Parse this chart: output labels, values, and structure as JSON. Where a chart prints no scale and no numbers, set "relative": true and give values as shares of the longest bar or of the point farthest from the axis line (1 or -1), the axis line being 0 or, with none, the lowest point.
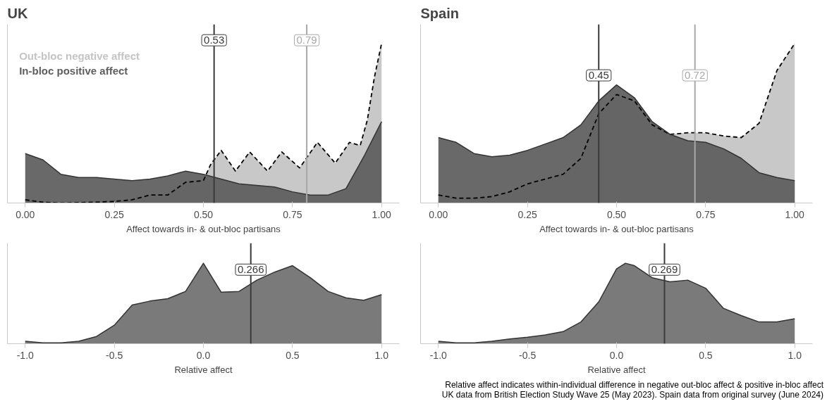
{
  "chart_data": [
    {
      "type": "area",
      "title": "UK",
      "xlabel": "Affect towards in- & out-bloc partisans",
      "relative": true,
      "legend": "top left",
      "grid": false,
      "tick_labels": "x",
      "xlim": [
        -0.05,
        1.05
      ],
      "xticks": [
        {
          "value": 0,
          "label": "0.00"
        },
        {
          "value": 0.25,
          "label": "0.25"
        },
        {
          "value": 0.5,
          "label": "0.50"
        },
        {
          "value": 0.75,
          "label": "0.75"
        },
        {
          "value": 1,
          "label": "1.00"
        }
      ],
      "series": [
        {
          "name": "Out-bloc negative affect",
          "color": "#c4c4c4",
          "line_style": "dashed",
          "x": [
            0,
            0.05,
            0.1,
            0.2,
            0.25,
            0.3,
            0.35,
            0.4,
            0.45,
            0.5,
            0.52,
            0.55,
            0.59,
            0.63,
            0.68,
            0.72,
            0.77,
            0.82,
            0.87,
            0.91,
            0.94,
            0.96,
            0.98,
            1.0
          ],
          "values": [
            0.02,
            0.005,
            0,
            0.005,
            0.01,
            0.02,
            0.05,
            0.05,
            0.13,
            0.14,
            0.24,
            0.33,
            0.2,
            0.32,
            0.2,
            0.32,
            0.22,
            0.38,
            0.25,
            0.38,
            0.36,
            0.52,
            0.79,
            1.0
          ]
        },
        {
          "name": "In-bloc positive affect",
          "color": "#5e5e5e",
          "line_style": "solid",
          "x": [
            0,
            0.05,
            0.1,
            0.15,
            0.2,
            0.25,
            0.3,
            0.35,
            0.4,
            0.45,
            0.5,
            0.55,
            0.6,
            0.65,
            0.7,
            0.75,
            0.8,
            0.85,
            0.9,
            0.95,
            1.0
          ],
          "values": [
            0.31,
            0.27,
            0.18,
            0.16,
            0.16,
            0.15,
            0.14,
            0.15,
            0.17,
            0.2,
            0.18,
            0.15,
            0.12,
            0.11,
            0.1,
            0.07,
            0.05,
            0.05,
            0.09,
            0.29,
            0.51
          ]
        }
      ],
      "ref_lines": [
        {
          "axis": "x",
          "value": 0.53,
          "label": "0.53",
          "color": "#3a3a3a"
        },
        {
          "axis": "x",
          "value": 0.79,
          "label": "0.79",
          "color": "#a8a8a8"
        }
      ]
    },
    {
      "type": "area",
      "title": "Spain",
      "xlabel": "Affect towards in- & out-bloc partisans",
      "relative": true,
      "grid": false,
      "tick_labels": "x",
      "xlim": [
        -0.05,
        1.05
      ],
      "xticks": [
        {
          "value": 0,
          "label": "0.00"
        },
        {
          "value": 0.25,
          "label": "0.25"
        },
        {
          "value": 0.5,
          "label": "0.50"
        },
        {
          "value": 0.75,
          "label": "0.75"
        },
        {
          "value": 1,
          "label": "1.00"
        }
      ],
      "series": [
        {
          "color": "#c4c4c4",
          "line_style": "dashed",
          "x": [
            0,
            0.05,
            0.1,
            0.15,
            0.2,
            0.25,
            0.3,
            0.35,
            0.4,
            0.45,
            0.5,
            0.55,
            0.6,
            0.65,
            0.7,
            0.75,
            0.8,
            0.85,
            0.9,
            0.95,
            1.0
          ],
          "values": [
            0.05,
            0.03,
            0.03,
            0.04,
            0.07,
            0.12,
            0.15,
            0.18,
            0.28,
            0.56,
            0.68,
            0.64,
            0.49,
            0.43,
            0.44,
            0.44,
            0.42,
            0.41,
            0.5,
            0.83,
            1.0
          ]
        },
        {
          "color": "#5e5e5e",
          "line_style": "solid",
          "x": [
            0,
            0.05,
            0.1,
            0.15,
            0.2,
            0.25,
            0.3,
            0.35,
            0.4,
            0.45,
            0.5,
            0.55,
            0.6,
            0.65,
            0.7,
            0.75,
            0.8,
            0.85,
            0.9,
            0.95,
            1.0
          ],
          "values": [
            0.41,
            0.38,
            0.31,
            0.29,
            0.3,
            0.33,
            0.37,
            0.41,
            0.49,
            0.64,
            0.74,
            0.66,
            0.51,
            0.43,
            0.39,
            0.38,
            0.34,
            0.28,
            0.19,
            0.16,
            0.14
          ]
        }
      ],
      "ref_lines": [
        {
          "axis": "x",
          "value": 0.45,
          "label": "0.45",
          "color": "#3a3a3a"
        },
        {
          "axis": "x",
          "value": 0.72,
          "label": "0.72",
          "color": "#a8a8a8"
        }
      ]
    },
    {
      "type": "area",
      "xlabel": "Relative affect",
      "relative": true,
      "grid": false,
      "tick_labels": "x",
      "xlim": [
        -1.1,
        1.1
      ],
      "xticks": [
        {
          "value": -1,
          "label": "-1.0"
        },
        {
          "value": -0.5,
          "label": "-0.5"
        },
        {
          "value": 0,
          "label": "0.0"
        },
        {
          "value": 0.5,
          "label": "0.5"
        },
        {
          "value": 1,
          "label": "1.0"
        }
      ],
      "series": [
        {
          "color": "#707070",
          "line_style": "solid",
          "x": [
            -1,
            -0.9,
            -0.8,
            -0.7,
            -0.6,
            -0.5,
            -0.4,
            -0.3,
            -0.2,
            -0.1,
            0,
            0.1,
            0.2,
            0.3,
            0.4,
            0.5,
            0.6,
            0.7,
            0.8,
            0.9,
            1.0
          ],
          "values": [
            0.03,
            0.01,
            0.01,
            0.03,
            0.09,
            0.23,
            0.48,
            0.53,
            0.56,
            0.65,
            1.0,
            0.64,
            0.65,
            0.79,
            0.89,
            0.97,
            0.82,
            0.65,
            0.57,
            0.54,
            0.61
          ]
        }
      ],
      "ref_lines": [
        {
          "axis": "x",
          "value": 0.266,
          "label": "0.266",
          "color": "#3a3a3a"
        }
      ]
    },
    {
      "type": "area",
      "xlabel": "Relative affect",
      "relative": true,
      "grid": false,
      "tick_labels": "x",
      "xlim": [
        -1.1,
        1.1
      ],
      "xticks": [
        {
          "value": -1,
          "label": "-1.0"
        },
        {
          "value": -0.5,
          "label": "-0.5"
        },
        {
          "value": 0,
          "label": "0.0"
        },
        {
          "value": 0.5,
          "label": "0.5"
        },
        {
          "value": 1,
          "label": "1.0"
        }
      ],
      "series": [
        {
          "color": "#707070",
          "line_style": "solid",
          "x": [
            -1,
            -0.9,
            -0.8,
            -0.7,
            -0.6,
            -0.5,
            -0.4,
            -0.3,
            -0.2,
            -0.1,
            0,
            0.05,
            0.1,
            0.2,
            0.3,
            0.4,
            0.5,
            0.6,
            0.7,
            0.8,
            0.9,
            1.0
          ],
          "values": [
            0.03,
            0.01,
            0.01,
            0.03,
            0.06,
            0.08,
            0.11,
            0.15,
            0.27,
            0.52,
            0.93,
            1.0,
            0.97,
            0.82,
            0.77,
            0.79,
            0.69,
            0.44,
            0.35,
            0.27,
            0.27,
            0.31
          ]
        }
      ],
      "ref_lines": [
        {
          "axis": "x",
          "value": 0.269,
          "label": "0.269",
          "color": "#3a3a3a"
        }
      ],
      "annotations": [
        "Relative affect indicates within-individual difference in negative out-bloc affect & positive in-bloc affect",
        "UK data from British Election Study Wave 25 (May 2023). Spain data from original survey (June 2024)"
      ]
    }
  ]
}
